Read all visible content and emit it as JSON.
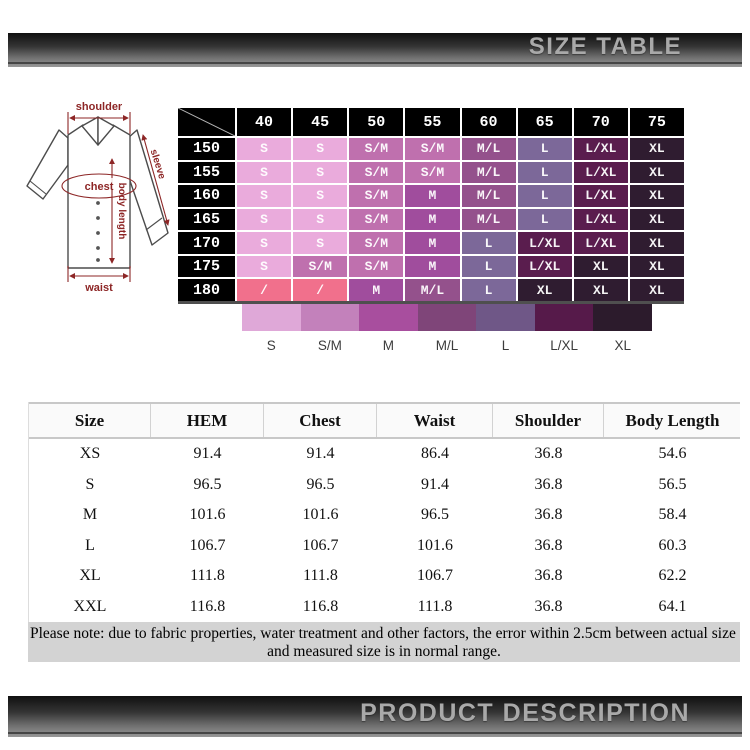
{
  "banners": {
    "top": "SIZE TABLE",
    "bottom": "PRODUCT DESCRIPTION"
  },
  "diagram": {
    "shoulder": "shoulder",
    "chest": "chest",
    "sleeve": "sleeve",
    "body_length": "body length",
    "waist": "waist",
    "annotation_color": "#8d2626"
  },
  "size_matrix": {
    "col_headers": [
      "40",
      "45",
      "50",
      "55",
      "60",
      "65",
      "70",
      "75"
    ],
    "rows": [
      {
        "label": "150",
        "cells": [
          "S",
          "S",
          "S/M",
          "S/M",
          "M/L",
          "L",
          "L/XL",
          "XL"
        ]
      },
      {
        "label": "155",
        "cells": [
          "S",
          "S",
          "S/M",
          "S/M",
          "M/L",
          "L",
          "L/XL",
          "XL"
        ]
      },
      {
        "label": "160",
        "cells": [
          "S",
          "S",
          "S/M",
          "M",
          "M/L",
          "L",
          "L/XL",
          "XL"
        ]
      },
      {
        "label": "165",
        "cells": [
          "S",
          "S",
          "S/M",
          "M",
          "M/L",
          "L",
          "L/XL",
          "XL"
        ]
      },
      {
        "label": "170",
        "cells": [
          "S",
          "S",
          "S/M",
          "M",
          "L",
          "L/XL",
          "L/XL",
          "XL"
        ]
      },
      {
        "label": "175",
        "cells": [
          "S",
          "S/M",
          "S/M",
          "M",
          "L",
          "L/XL",
          "XL",
          "XL"
        ]
      },
      {
        "label": "180",
        "cells": [
          "/",
          "/",
          "M",
          "M/L",
          "L",
          "XL",
          "XL",
          "XL"
        ]
      }
    ],
    "cell_colors": {
      "S": "#eaabdc",
      "S/M": "#bf70ae",
      "M": "#a04d9d",
      "M/L": "#94518c",
      "L": "#7c6899",
      "L/XL": "#5a1d4e",
      "XL": "#2f1c30",
      "/": "#f1708c"
    }
  },
  "legend": {
    "items": [
      {
        "label": "S",
        "color": "#dfa8d8"
      },
      {
        "label": "S/M",
        "color": "#c381bb"
      },
      {
        "label": "M",
        "color": "#a84e9e"
      },
      {
        "label": "M/L",
        "color": "#7f4579"
      },
      {
        "label": "L",
        "color": "#6f5787"
      },
      {
        "label": "L/XL",
        "color": "#561a4a"
      },
      {
        "label": "XL",
        "color": "#2c1b2c"
      }
    ]
  },
  "measurement_table": {
    "headers": [
      "Size",
      "HEM",
      "Chest",
      "Waist",
      "Shoulder",
      "Body Length"
    ],
    "rows": [
      [
        "XS",
        "91.4",
        "91.4",
        "86.4",
        "36.8",
        "54.6"
      ],
      [
        "S",
        "96.5",
        "96.5",
        "91.4",
        "36.8",
        "56.5"
      ],
      [
        "M",
        "101.6",
        "101.6",
        "96.5",
        "36.8",
        "58.4"
      ],
      [
        "L",
        "106.7",
        "106.7",
        "101.6",
        "36.8",
        "60.3"
      ],
      [
        "XL",
        "111.8",
        "111.8",
        "106.7",
        "36.8",
        "62.2"
      ],
      [
        "XXL",
        "116.8",
        "116.8",
        "111.8",
        "36.8",
        "64.1"
      ]
    ]
  },
  "note": {
    "line1": "Please note: due to fabric properties, water treatment and other factors, the error within 2.5cm between actual size",
    "line2": "and measured size is in normal range."
  }
}
